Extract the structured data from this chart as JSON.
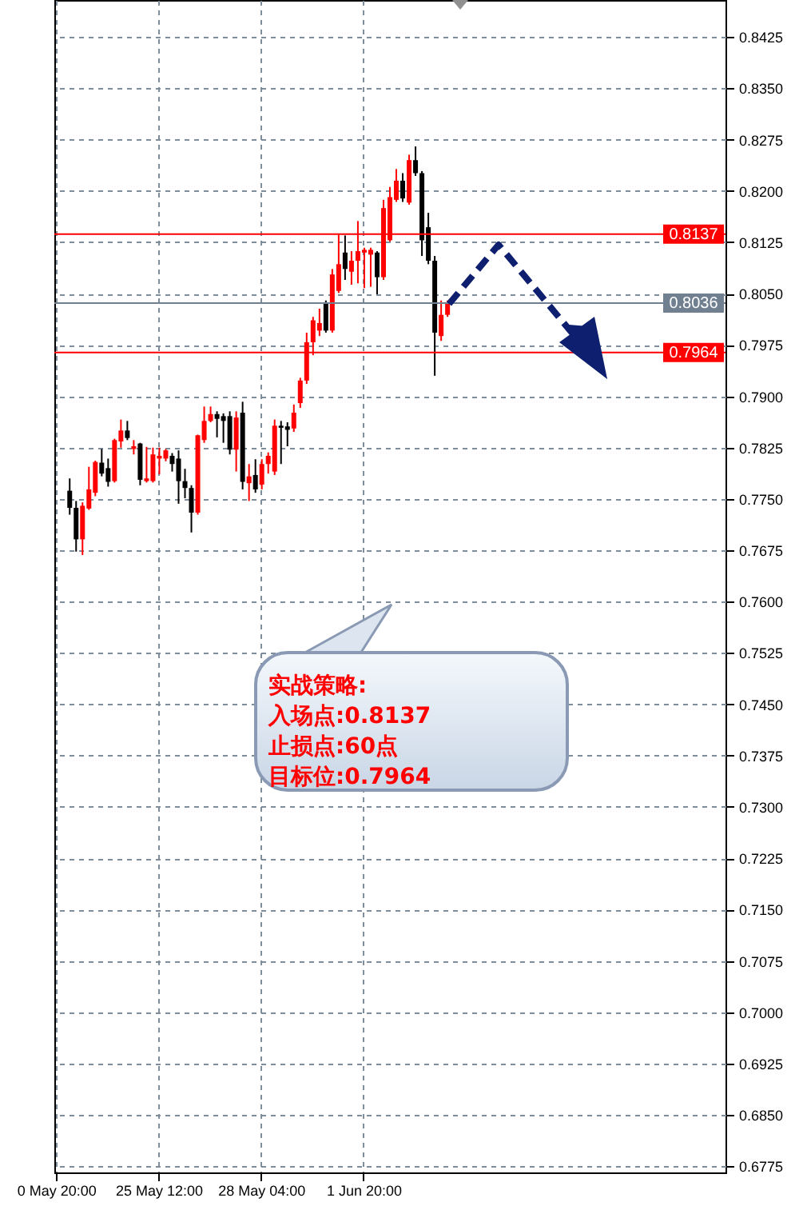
{
  "chart_data": {
    "type": "candlestick",
    "categories": [
      "0 May 20:00",
      null,
      null,
      null,
      null,
      null,
      null,
      null,
      null,
      null,
      null,
      null,
      null,
      null,
      null,
      null,
      "25 May 12:00",
      null,
      null,
      null,
      null,
      null,
      null,
      null,
      null,
      null,
      null,
      null,
      null,
      null,
      null,
      null,
      "28 May 04:00",
      null,
      null,
      null,
      null,
      null,
      null,
      null,
      null,
      null,
      null,
      null,
      null,
      null,
      null,
      null,
      "1 Jun 20:00",
      null,
      null,
      null,
      null,
      null,
      null,
      null,
      null,
      null,
      null,
      null,
      null,
      null,
      null,
      null,
      null,
      null,
      null,
      null,
      null,
      null,
      null,
      null,
      null,
      null,
      null,
      null,
      null,
      null,
      null,
      null,
      null,
      null,
      null,
      null,
      null,
      null,
      null,
      null,
      null,
      null,
      null,
      null,
      null,
      null,
      null,
      null,
      null,
      null,
      null,
      null,
      null,
      null,
      null,
      null,
      null
    ],
    "ohlc": [
      null,
      null,
      [
        0.7762,
        0.778,
        0.7727,
        0.7737
      ],
      [
        0.7737,
        0.7747,
        0.7673,
        0.7691
      ],
      [
        0.7691,
        0.7745,
        0.7668,
        0.774
      ],
      [
        0.7736,
        0.7797,
        0.7734,
        0.7764
      ],
      [
        0.7759,
        0.7806,
        0.7754,
        0.7804
      ],
      [
        0.7803,
        0.7823,
        0.7783,
        0.7787
      ],
      [
        0.7795,
        0.7809,
        0.7768,
        0.7775
      ],
      [
        0.7776,
        0.7838,
        0.7774,
        0.7836
      ],
      [
        0.7834,
        0.7866,
        0.7825,
        0.785
      ],
      [
        0.785,
        0.7864,
        0.7836,
        0.7839
      ],
      [
        0.7823,
        0.7836,
        0.7815,
        0.7827
      ],
      [
        0.7831,
        0.7832,
        0.777,
        0.7778
      ],
      [
        0.7776,
        0.7826,
        0.7774,
        0.778
      ],
      [
        0.7776,
        0.7825,
        0.7774,
        0.7815
      ],
      [
        0.7809,
        0.7825,
        0.7786,
        0.7813
      ],
      [
        0.7809,
        0.7823,
        0.7805,
        0.7821
      ],
      [
        0.7813,
        0.7817,
        0.779,
        0.7801
      ],
      [
        0.7809,
        0.7821,
        0.7743,
        0.7776
      ],
      [
        0.7776,
        0.7794,
        0.7751,
        0.7766
      ],
      [
        0.7766,
        0.777,
        0.7701,
        0.773
      ],
      [
        0.773,
        0.7844,
        0.7727,
        0.7843
      ],
      [
        0.7836,
        0.7885,
        0.7832,
        0.7864
      ],
      [
        0.7864,
        0.7885,
        0.7862,
        0.7874
      ],
      [
        0.7874,
        0.7878,
        0.784,
        0.7867
      ],
      [
        0.7871,
        0.7875,
        0.7832,
        0.7864
      ],
      [
        0.7871,
        0.7878,
        0.7815,
        0.7822
      ],
      [
        0.7822,
        0.7878,
        0.779,
        0.7869
      ],
      [
        0.7876,
        0.7892,
        0.7764,
        0.7775
      ],
      [
        0.7773,
        0.7801,
        0.7747,
        0.7783
      ],
      [
        0.7785,
        0.7808,
        0.7759,
        0.7764
      ],
      [
        0.7771,
        0.7808,
        0.7764,
        0.7801
      ],
      [
        0.7801,
        0.7818,
        0.7787,
        0.7813
      ],
      [
        0.779,
        0.7866,
        0.7785,
        0.7857
      ],
      [
        0.7857,
        0.7864,
        0.7801,
        0.7854
      ],
      [
        0.7856,
        0.7862,
        0.7827,
        0.7851
      ],
      [
        0.7853,
        0.7888,
        0.7848,
        0.7876
      ],
      [
        0.789,
        0.7927,
        0.7883,
        0.7923
      ],
      [
        0.7923,
        0.7993,
        0.7918,
        0.7979
      ],
      [
        0.7979,
        0.8016,
        0.796,
        0.8011
      ],
      [
        0.7996,
        0.8028,
        0.7988,
        0.8007
      ],
      [
        0.8035,
        0.804,
        0.7993,
        0.7996
      ],
      [
        0.7996,
        0.8086,
        0.7993,
        0.8078
      ],
      [
        0.8054,
        0.8136,
        0.8051,
        0.8093
      ],
      [
        0.811,
        0.8135,
        0.807,
        0.8086
      ],
      [
        0.8082,
        0.8112,
        0.8063,
        0.8098
      ],
      [
        0.8098,
        0.8156,
        0.8065,
        0.8112
      ],
      [
        0.811,
        0.8117,
        0.8058,
        0.8114
      ],
      [
        0.8107,
        0.8117,
        0.806,
        0.8114
      ],
      [
        0.811,
        0.8112,
        0.8049,
        0.8074
      ],
      [
        0.8074,
        0.8187,
        0.807,
        0.8175
      ],
      [
        0.8128,
        0.8206,
        0.8126,
        0.8191
      ],
      [
        0.8187,
        0.8232,
        0.8184,
        0.8215
      ],
      [
        0.8215,
        0.8226,
        0.8184,
        0.8189
      ],
      [
        0.8183,
        0.8253,
        0.818,
        0.8245
      ],
      [
        0.8245,
        0.8265,
        0.8222,
        0.8226
      ],
      [
        0.8226,
        0.8229,
        0.8105,
        0.8128
      ],
      [
        0.8147,
        0.8168,
        0.8093,
        0.8098
      ],
      [
        0.8098,
        0.8105,
        0.793,
        0.7993
      ],
      [
        0.7988,
        0.804,
        0.7981,
        0.8019
      ],
      [
        0.8019,
        0.804,
        0.8016,
        0.8036
      ],
      null,
      null,
      null,
      null,
      null,
      null,
      null,
      null,
      null,
      null,
      null,
      null,
      null,
      null,
      null,
      null,
      null,
      null,
      null,
      null,
      null,
      null,
      null,
      null,
      null,
      null,
      null,
      null,
      null,
      null,
      null,
      null,
      null,
      null,
      null,
      null,
      null,
      null,
      null,
      null,
      null,
      null,
      null
    ],
    "colors": [
      null,
      null,
      "#000000",
      "#000000",
      "#ff0000",
      "#ff0000",
      "#ff0000",
      "#000000",
      "#000000",
      "#ff0000",
      "#ff0000",
      "#000000",
      "#ff0000",
      "#000000",
      "#ff0000",
      "#ff0000",
      "#ff0000",
      "#ff0000",
      "#000000",
      "#000000",
      "#000000",
      "#000000",
      "#ff0000",
      "#ff0000",
      "#ff0000",
      "#000000",
      "#000000",
      "#000000",
      "#ff0000",
      "#000000",
      "#ff0000",
      "#000000",
      "#ff0000",
      "#ff0000",
      "#ff0000",
      "#000000",
      "#000000",
      "#ff0000",
      "#ff0000",
      "#ff0000",
      "#ff0000",
      "#ff0000",
      "#000000",
      "#ff0000",
      "#ff0000",
      "#000000",
      "#ff0000",
      "#ff0000",
      "#ff0000",
      "#ff0000",
      "#000000",
      "#ff0000",
      "#ff0000",
      "#ff0000",
      "#000000",
      "#ff0000",
      "#000000",
      "#000000",
      "#000000",
      "#000000",
      "#ff0000",
      "#ff0000",
      null,
      null,
      null,
      null,
      null,
      null,
      null,
      null,
      null,
      null,
      null,
      null,
      null,
      null,
      null,
      null,
      null,
      null,
      null,
      null,
      null,
      null,
      null,
      null,
      null,
      null,
      null,
      null,
      null,
      null,
      null,
      null,
      null,
      null,
      null,
      null,
      null,
      null,
      null,
      null,
      null,
      null,
      null
    ],
    "ylim": [
      0.6766,
      0.8479
    ],
    "yticks": [
      {
        "value": 0.6775,
        "label": "0.6775"
      },
      {
        "value": 0.685,
        "label": "0.6850"
      },
      {
        "value": 0.6925,
        "label": "0.6925"
      },
      {
        "value": 0.7,
        "label": "0.7000"
      },
      {
        "value": 0.7075,
        "label": "0.7075"
      },
      {
        "value": 0.715,
        "label": "0.7150"
      },
      {
        "value": 0.7225,
        "label": "0.7225"
      },
      {
        "value": 0.73,
        "label": "0.7300"
      },
      {
        "value": 0.7375,
        "label": "0.7375"
      },
      {
        "value": 0.745,
        "label": "0.7450"
      },
      {
        "value": 0.7525,
        "label": "0.7525"
      },
      {
        "value": 0.76,
        "label": "0.7600"
      },
      {
        "value": 0.7675,
        "label": "0.7675"
      },
      {
        "value": 0.775,
        "label": "0.7750"
      },
      {
        "value": 0.7825,
        "label": "0.7825"
      },
      {
        "value": 0.79,
        "label": "0.7900"
      },
      {
        "value": 0.7975,
        "label": "0.7975"
      },
      {
        "value": 0.805,
        "label": "0.8050"
      },
      {
        "value": 0.8125,
        "label": "0.8125"
      },
      {
        "value": 0.82,
        "label": "0.8200"
      },
      {
        "value": 0.8275,
        "label": "0.8275"
      },
      {
        "value": 0.835,
        "label": "0.8350"
      },
      {
        "value": 0.8425,
        "label": "0.8425"
      }
    ],
    "grid": true,
    "ref_lines": [
      {
        "axis": "y",
        "value": 0.8137,
        "label": "0.8137",
        "color": "#ff0000"
      },
      {
        "axis": "y",
        "value": 0.8036,
        "label": "0.8036",
        "color": "#708090"
      },
      {
        "axis": "y",
        "value": 0.7964,
        "label": "0.7964",
        "color": "#ff0000"
      }
    ],
    "annotations": [
      "实战策略:",
      "入场点:0.8137",
      "止损点:60点",
      "目标位:0.7964"
    ]
  }
}
